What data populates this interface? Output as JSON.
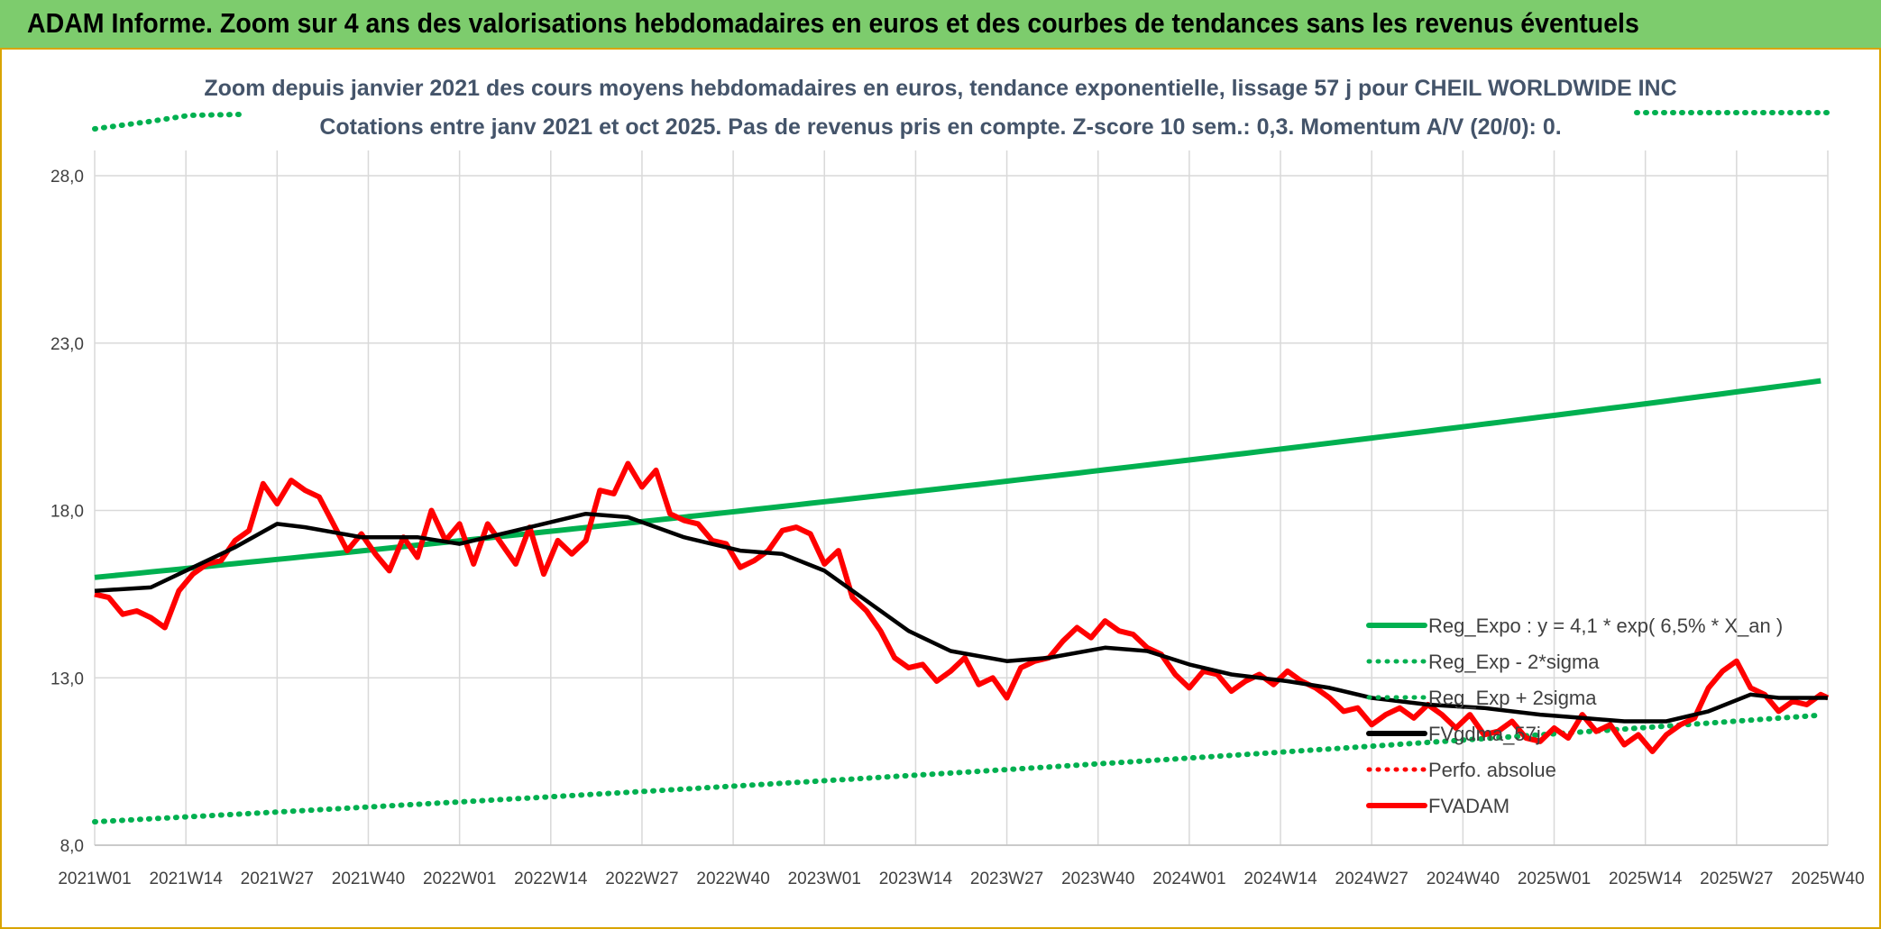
{
  "header": {
    "title": "ADAM Informe. Zoom sur 4 ans des valorisations hebdomadaires en euros et des courbes de tendances sans les revenus éventuels"
  },
  "chart_data": {
    "type": "line",
    "title_line1": "Zoom depuis janvier 2021 des cours moyens hebdomadaires en euros, tendance exponentielle, lissage 57 j pour CHEIL WORLDWIDE INC",
    "title_line2": "Cotations entre janv 2021 et oct 2025. Pas de revenus pris en compte. Z-score 10 sem.: 0,3. Momentum A/V (20/0): 0.",
    "xlabel": "",
    "ylabel": "",
    "ylim": [
      8.0,
      28.0
    ],
    "y_ticks": [
      "8,0",
      "13,0",
      "18,0",
      "23,0",
      "28,0"
    ],
    "y_tick_values": [
      8,
      13,
      18,
      23,
      28
    ],
    "x_ticks": [
      "2021W01",
      "2021W14",
      "2021W27",
      "2021W40",
      "2022W01",
      "2022W14",
      "2022W27",
      "2022W40",
      "2023W01",
      "2023W14",
      "2023W27",
      "2023W40",
      "2024W01",
      "2024W14",
      "2024W27",
      "2024W40",
      "2025W01",
      "2025W14",
      "2025W27",
      "2025W40"
    ],
    "x_tick_index": [
      0,
      13,
      26,
      39,
      52,
      65,
      78,
      91,
      104,
      117,
      130,
      143,
      156,
      169,
      182,
      195,
      208,
      221,
      234,
      247
    ],
    "n_weeks": 248,
    "grid": true,
    "legend_position": "bottom-right",
    "series": [
      {
        "name": "Reg_Expo : y = 4,1 * exp( 6,5% *  X_an )",
        "color": "#00b050",
        "style": "solid",
        "start": 16.0,
        "end": 21.9
      },
      {
        "name": "Reg_Exp - 2*sigma",
        "color": "#00b050",
        "style": "dotted",
        "start": 8.7,
        "end": 11.9
      },
      {
        "name": "Reg_Exp + 2sigma",
        "color": "#00b050",
        "style": "dotted",
        "start": 29.7,
        "end": 29.7
      },
      {
        "name": "FVgdma_57j",
        "color": "#000000",
        "style": "solid",
        "points": [
          [
            0,
            15.6
          ],
          [
            8,
            15.7
          ],
          [
            14,
            16.3
          ],
          [
            20,
            16.9
          ],
          [
            26,
            17.6
          ],
          [
            30,
            17.5
          ],
          [
            38,
            17.2
          ],
          [
            46,
            17.2
          ],
          [
            52,
            17.0
          ],
          [
            60,
            17.4
          ],
          [
            70,
            17.9
          ],
          [
            76,
            17.8
          ],
          [
            84,
            17.2
          ],
          [
            92,
            16.8
          ],
          [
            98,
            16.7
          ],
          [
            104,
            16.2
          ],
          [
            110,
            15.3
          ],
          [
            116,
            14.4
          ],
          [
            122,
            13.8
          ],
          [
            130,
            13.5
          ],
          [
            136,
            13.6
          ],
          [
            144,
            13.9
          ],
          [
            150,
            13.8
          ],
          [
            156,
            13.4
          ],
          [
            162,
            13.1
          ],
          [
            170,
            12.9
          ],
          [
            176,
            12.7
          ],
          [
            182,
            12.4
          ],
          [
            190,
            12.2
          ],
          [
            198,
            12.1
          ],
          [
            206,
            11.9
          ],
          [
            212,
            11.8
          ],
          [
            218,
            11.7
          ],
          [
            224,
            11.7
          ],
          [
            230,
            12.0
          ],
          [
            236,
            12.5
          ],
          [
            240,
            12.4
          ],
          [
            247,
            12.4
          ]
        ]
      },
      {
        "name": "Perfo. absolue",
        "color": "#ff0000",
        "style": "dotted",
        "points": []
      },
      {
        "name": "FVADAM",
        "color": "#ff0000",
        "style": "solid",
        "points": [
          [
            0,
            15.5
          ],
          [
            2,
            15.4
          ],
          [
            4,
            14.9
          ],
          [
            6,
            15.0
          ],
          [
            8,
            14.8
          ],
          [
            10,
            14.5
          ],
          [
            12,
            15.6
          ],
          [
            14,
            16.1
          ],
          [
            16,
            16.4
          ],
          [
            18,
            16.5
          ],
          [
            20,
            17.1
          ],
          [
            22,
            17.4
          ],
          [
            24,
            18.8
          ],
          [
            26,
            18.2
          ],
          [
            28,
            18.9
          ],
          [
            30,
            18.6
          ],
          [
            32,
            18.4
          ],
          [
            34,
            17.6
          ],
          [
            36,
            16.8
          ],
          [
            38,
            17.3
          ],
          [
            40,
            16.7
          ],
          [
            42,
            16.2
          ],
          [
            44,
            17.2
          ],
          [
            46,
            16.6
          ],
          [
            48,
            18.0
          ],
          [
            50,
            17.1
          ],
          [
            52,
            17.6
          ],
          [
            54,
            16.4
          ],
          [
            56,
            17.6
          ],
          [
            58,
            17.0
          ],
          [
            60,
            16.4
          ],
          [
            62,
            17.5
          ],
          [
            64,
            16.1
          ],
          [
            66,
            17.1
          ],
          [
            68,
            16.7
          ],
          [
            70,
            17.1
          ],
          [
            72,
            18.6
          ],
          [
            74,
            18.5
          ],
          [
            76,
            19.4
          ],
          [
            78,
            18.7
          ],
          [
            80,
            19.2
          ],
          [
            82,
            17.9
          ],
          [
            84,
            17.7
          ],
          [
            86,
            17.6
          ],
          [
            88,
            17.1
          ],
          [
            90,
            17.0
          ],
          [
            92,
            16.3
          ],
          [
            94,
            16.5
          ],
          [
            96,
            16.8
          ],
          [
            98,
            17.4
          ],
          [
            100,
            17.5
          ],
          [
            102,
            17.3
          ],
          [
            104,
            16.4
          ],
          [
            106,
            16.8
          ],
          [
            108,
            15.4
          ],
          [
            110,
            15.0
          ],
          [
            112,
            14.4
          ],
          [
            114,
            13.6
          ],
          [
            116,
            13.3
          ],
          [
            118,
            13.4
          ],
          [
            120,
            12.9
          ],
          [
            122,
            13.2
          ],
          [
            124,
            13.6
          ],
          [
            126,
            12.8
          ],
          [
            128,
            13.0
          ],
          [
            130,
            12.4
          ],
          [
            132,
            13.3
          ],
          [
            134,
            13.5
          ],
          [
            136,
            13.6
          ],
          [
            138,
            14.1
          ],
          [
            140,
            14.5
          ],
          [
            142,
            14.2
          ],
          [
            144,
            14.7
          ],
          [
            146,
            14.4
          ],
          [
            148,
            14.3
          ],
          [
            150,
            13.9
          ],
          [
            152,
            13.7
          ],
          [
            154,
            13.1
          ],
          [
            156,
            12.7
          ],
          [
            158,
            13.2
          ],
          [
            160,
            13.1
          ],
          [
            162,
            12.6
          ],
          [
            164,
            12.9
          ],
          [
            166,
            13.1
          ],
          [
            168,
            12.8
          ],
          [
            170,
            13.2
          ],
          [
            172,
            12.9
          ],
          [
            174,
            12.7
          ],
          [
            176,
            12.4
          ],
          [
            178,
            12.0
          ],
          [
            180,
            12.1
          ],
          [
            182,
            11.6
          ],
          [
            184,
            11.9
          ],
          [
            186,
            12.1
          ],
          [
            188,
            11.8
          ],
          [
            190,
            12.2
          ],
          [
            192,
            11.9
          ],
          [
            194,
            11.5
          ],
          [
            196,
            11.9
          ],
          [
            198,
            11.3
          ],
          [
            200,
            11.4
          ],
          [
            202,
            11.7
          ],
          [
            204,
            11.2
          ],
          [
            206,
            11.1
          ],
          [
            208,
            11.5
          ],
          [
            210,
            11.2
          ],
          [
            212,
            11.9
          ],
          [
            214,
            11.4
          ],
          [
            216,
            11.6
          ],
          [
            218,
            11.0
          ],
          [
            220,
            11.3
          ],
          [
            222,
            10.8
          ],
          [
            224,
            11.3
          ],
          [
            226,
            11.6
          ],
          [
            228,
            11.8
          ],
          [
            230,
            12.7
          ],
          [
            232,
            13.2
          ],
          [
            234,
            13.5
          ],
          [
            236,
            12.7
          ],
          [
            238,
            12.5
          ],
          [
            240,
            12.0
          ],
          [
            242,
            12.3
          ],
          [
            244,
            12.2
          ],
          [
            246,
            12.5
          ],
          [
            247,
            12.4
          ]
        ]
      }
    ]
  }
}
